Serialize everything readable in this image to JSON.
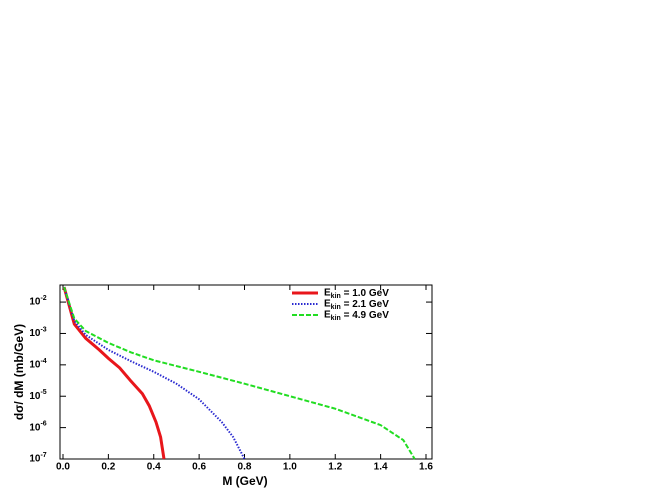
{
  "chart_data": {
    "type": "line",
    "xlabel": "M (GeV)",
    "ylabel": "dσ/ dM (mb/GeV)",
    "log_y": true,
    "xlim": [
      0,
      1.6
    ],
    "ylim": [
      1e-07,
      0.035
    ],
    "xticks": [
      {
        "value": 0,
        "label": "0.0"
      },
      0.2,
      0.4,
      0.6,
      0.8,
      {
        "value": 1,
        "label": "1.0"
      },
      1.2,
      1.4,
      1.6
    ],
    "yticks": [
      {
        "value": 1e-07,
        "label": "10-7"
      },
      {
        "value": 1e-06,
        "label": "10-6"
      },
      {
        "value": 1e-05,
        "label": "10-5"
      },
      {
        "value": 0.0001,
        "label": "10-4"
      },
      {
        "value": 0.001,
        "label": "10-3"
      },
      {
        "value": 0.01,
        "label": "10-2"
      }
    ],
    "legend": "upper right",
    "series": [
      {
        "name": "Ekin = 1.0 GeV",
        "color": "#e8161b",
        "dash": "solid",
        "x": [
          0.005,
          0.05,
          0.1,
          0.16,
          0.2,
          0.25,
          0.3,
          0.35,
          0.38,
          0.41,
          0.43,
          0.445
        ],
        "values": [
          0.03,
          0.002,
          0.0007,
          0.0003,
          0.00016,
          8e-05,
          3e-05,
          1.2e-05,
          5e-06,
          1.5e-06,
          5e-07,
          1e-07
        ]
      },
      {
        "name": "Ekin = 2.1 GeV",
        "color": "#2a2ad0",
        "dash": "dotted",
        "x": [
          0.005,
          0.05,
          0.1,
          0.2,
          0.3,
          0.4,
          0.5,
          0.6,
          0.7,
          0.75,
          0.8
        ],
        "values": [
          0.03,
          0.0025,
          0.0009,
          0.0003,
          0.00013,
          6e-05,
          2.5e-05,
          8e-06,
          1.5e-06,
          5e-07,
          1e-07
        ]
      },
      {
        "name": "Ekin = 4.9 GeV",
        "color": "#22dd22",
        "dash": "dashed",
        "x": [
          0.005,
          0.05,
          0.1,
          0.2,
          0.3,
          0.4,
          0.6,
          0.8,
          1,
          1.2,
          1.4,
          1.5,
          1.55
        ],
        "values": [
          0.03,
          0.003,
          0.0012,
          0.0005,
          0.00025,
          0.00014,
          6e-05,
          2.5e-05,
          1e-05,
          4e-06,
          1.2e-06,
          4e-07,
          1e-07
        ]
      }
    ]
  }
}
